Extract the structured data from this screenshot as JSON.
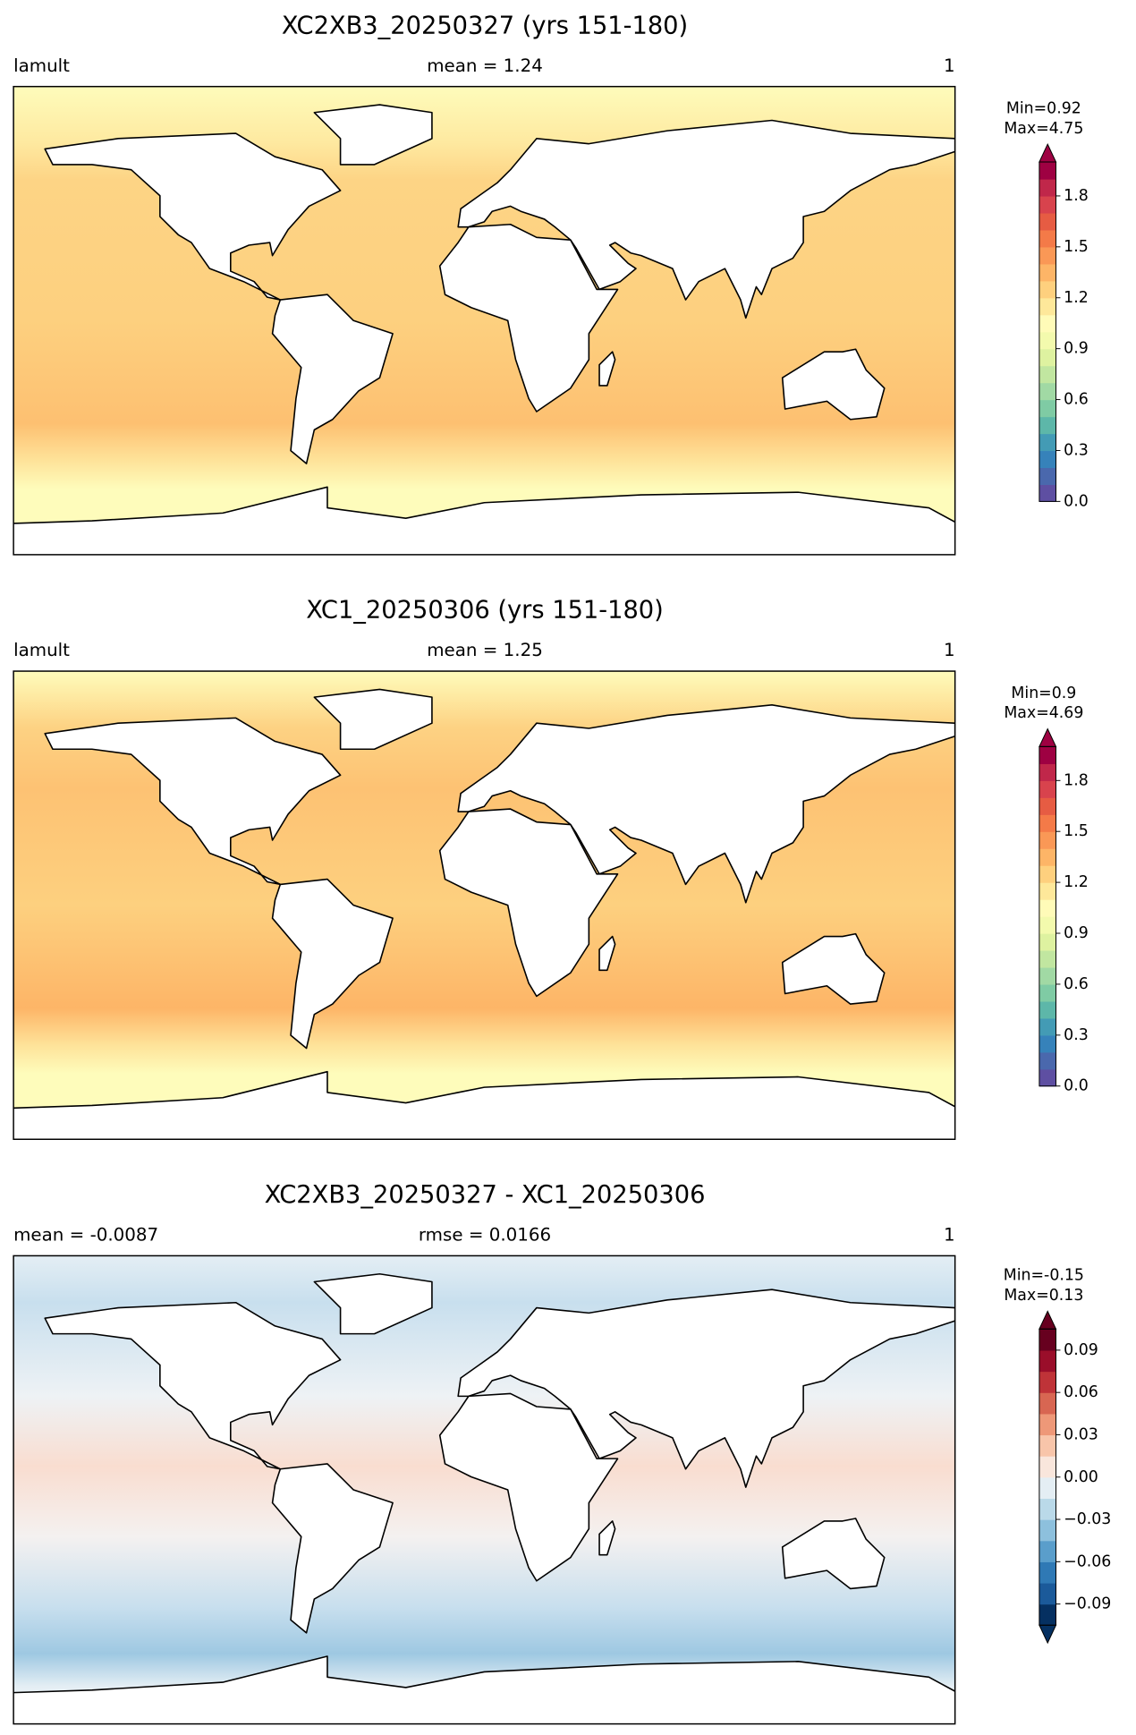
{
  "chart_data": [
    {
      "type": "map",
      "title": "XC2XB3_20250327 (yrs 151-180)",
      "left_label": "lamult",
      "center_label": "mean = 1.24",
      "right_label": "1",
      "colorbar": {
        "stats": [
          "Min=0.92",
          "Max=4.75"
        ],
        "clim": [
          0,
          2.0
        ],
        "extend": "max",
        "ticks": [
          {
            "value": 0,
            "label": "0.0"
          },
          0.3,
          0.6,
          0.9,
          1.2,
          1.5,
          1.8
        ],
        "colors": [
          "#5e4fa2",
          "#4a68ad",
          "#3682ba",
          "#439bb5",
          "#5db7a9",
          "#7fcba4",
          "#a1d9a4",
          "#c1e6a0",
          "#def2a0",
          "#f3faad",
          "#fffbb8",
          "#fee89a",
          "#fed07e",
          "#fdb567",
          "#fa9856",
          "#f47a48",
          "#e65c43",
          "#d8434d",
          "#c0274a",
          "#9e0142"
        ]
      }
    },
    {
      "type": "map",
      "title": "XC1_20250306 (yrs 151-180)",
      "left_label": "lamult",
      "center_label": "mean = 1.25",
      "right_label": "1",
      "colorbar": {
        "stats": [
          "Min=0.9",
          "Max=4.69"
        ],
        "clim": [
          0,
          2.0
        ],
        "extend": "max",
        "ticks": [
          {
            "value": 0,
            "label": "0.0"
          },
          0.3,
          0.6,
          0.9,
          1.2,
          1.5,
          1.8
        ],
        "colors": [
          "#5e4fa2",
          "#4a68ad",
          "#3682ba",
          "#439bb5",
          "#5db7a9",
          "#7fcba4",
          "#a1d9a4",
          "#c1e6a0",
          "#def2a0",
          "#f3faad",
          "#fffbb8",
          "#fee89a",
          "#fed07e",
          "#fdb567",
          "#fa9856",
          "#f47a48",
          "#e65c43",
          "#d8434d",
          "#c0274a",
          "#9e0142"
        ]
      }
    },
    {
      "type": "map",
      "title": "XC2XB3_20250327 - XC1_20250306",
      "left_label": "mean = -0.0087",
      "center_label": "rmse = 0.0166",
      "right_label": "1",
      "colorbar": {
        "stats": [
          "Min=-0.15",
          "Max=0.13"
        ],
        "clim": [
          -0.105,
          0.105
        ],
        "extend": "both",
        "ticks": [
          {
            "value": -0.09,
            "label": "−0.09"
          },
          {
            "value": -0.06,
            "label": "−0.06"
          },
          {
            "value": -0.03,
            "label": "−0.03"
          },
          {
            "value": 0,
            "label": "0.00"
          },
          0.03,
          0.06,
          0.09
        ],
        "colors": [
          "#053061",
          "#1b5a9a",
          "#2f79b5",
          "#5a9ecb",
          "#8dc0dd",
          "#bad9e9",
          "#e4eef4",
          "#f9e6dc",
          "#f8c5aa",
          "#ee9878",
          "#d86652",
          "#bf3338",
          "#9a0e2a",
          "#67001f"
        ]
      }
    }
  ]
}
